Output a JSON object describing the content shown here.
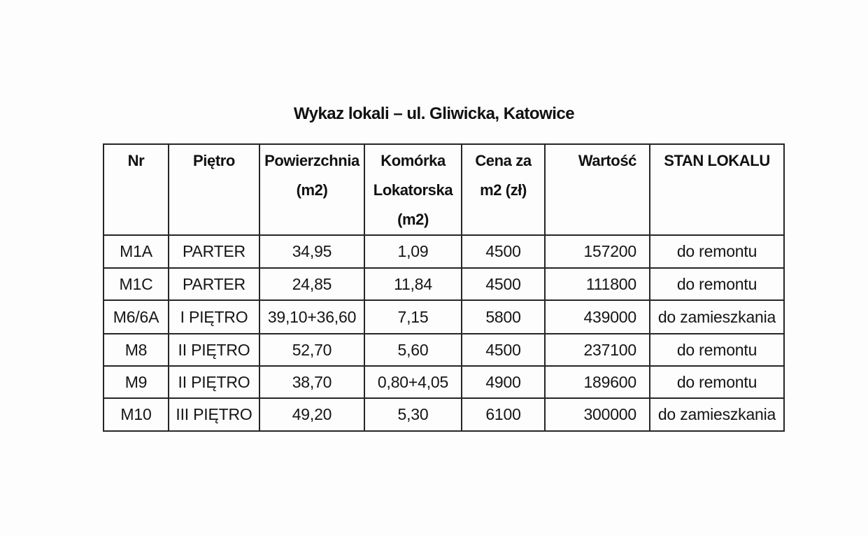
{
  "page": {
    "background": "#fdfdfd",
    "text_color": "#131313",
    "border_color": "#262626"
  },
  "document": {
    "title": "Wykaz lokali – ul. Gliwicka, Katowice",
    "table": {
      "columns": [
        "Nr",
        "Piętro",
        "Powierzchnia\n(m2)",
        "Komórka\nLokatorska\n(m2)",
        "Cena za\nm2 (zł)",
        "Wartość",
        "STAN LOKALU"
      ],
      "rows": [
        [
          "M1A",
          "PARTER",
          "34,95",
          "1,09",
          "4500",
          "157200",
          "do remontu"
        ],
        [
          "M1C",
          "PARTER",
          "24,85",
          "11,84",
          "4500",
          "111800",
          "do remontu"
        ],
        [
          "M6/6A",
          "I PIĘTRO",
          "39,10+36,60",
          "7,15",
          "5800",
          "439000",
          "do zamieszkania"
        ],
        [
          "M8",
          "II PIĘTRO",
          "52,70",
          "5,60",
          "4500",
          "237100",
          "do remontu"
        ],
        [
          "M9",
          "II PIĘTRO",
          "38,70",
          "0,80+4,05",
          "4900",
          "189600",
          "do remontu"
        ],
        [
          "M10",
          "III PIĘTRO",
          "49,20",
          "5,30",
          "6100",
          "300000",
          "do zamieszkania"
        ]
      ]
    }
  }
}
